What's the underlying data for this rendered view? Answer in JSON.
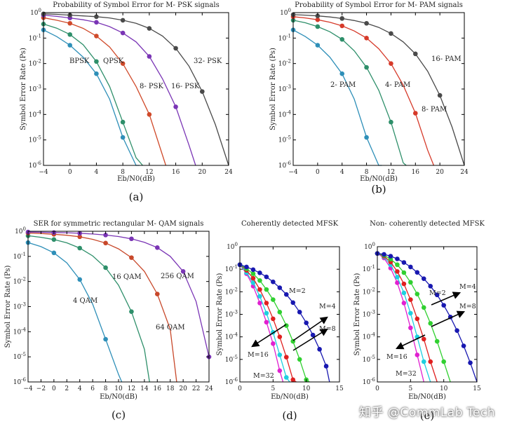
{
  "watermark": "知乎 @CommLab Tech",
  "chart_data": [
    {
      "id": "a",
      "type": "line",
      "panel_label": "(a)",
      "title": "Probability of Symbol Error for M- PSK signals",
      "xlabel": "Eb/N0(dB)",
      "ylabel": "Symbol Error Rate (Ps)",
      "xlim": [
        -4,
        24
      ],
      "ylim_exp": [
        -6,
        0
      ],
      "yscale": "log",
      "xticks": [
        -4,
        0,
        4,
        8,
        12,
        16,
        20,
        24
      ],
      "yticks": [
        "10^0",
        "10^-1",
        "10^-2",
        "10^-3",
        "10^-4",
        "10^-5",
        "10^-6"
      ],
      "series": [
        {
          "name": "BPSK",
          "color": "#2e8fb8",
          "label": "BPSK",
          "x": [
            -4,
            -2,
            0,
            2,
            4,
            6,
            8,
            10,
            10.5
          ],
          "logy": [
            -0.68,
            -0.94,
            -1.28,
            -1.75,
            -2.4,
            -3.4,
            -4.9,
            -6,
            -6
          ]
        },
        {
          "name": "QPSK",
          "color": "#2e8f6a",
          "label": "QPSK",
          "x": [
            -4,
            -2,
            0,
            2,
            4,
            6,
            8,
            10,
            11
          ],
          "logy": [
            -0.45,
            -0.61,
            -0.86,
            -1.26,
            -1.92,
            -2.9,
            -4.3,
            -5.7,
            -6
          ]
        },
        {
          "name": "8-PSK",
          "color": "#d04a2a",
          "label": "8- PSK",
          "x": [
            -4,
            -2,
            0,
            2,
            4,
            6,
            8,
            10,
            12,
            14,
            14.5
          ],
          "logy": [
            -0.2,
            -0.3,
            -0.42,
            -0.62,
            -0.92,
            -1.35,
            -2.0,
            -2.9,
            -4.0,
            -5.6,
            -6
          ]
        },
        {
          "name": "16-PSK",
          "color": "#7a35b5",
          "label": "16- PSK",
          "x": [
            -4,
            -2,
            0,
            2,
            4,
            6,
            8,
            10,
            12,
            14,
            16,
            18,
            19
          ],
          "logy": [
            -0.1,
            -0.15,
            -0.21,
            -0.28,
            -0.38,
            -0.55,
            -0.8,
            -1.15,
            -1.72,
            -2.6,
            -3.7,
            -5.2,
            -6
          ]
        },
        {
          "name": "32-PSK",
          "color": "#4a4a4a",
          "label": "32- PSK",
          "x": [
            -4,
            -2,
            0,
            2,
            4,
            6,
            8,
            10,
            12,
            14,
            16,
            18,
            20,
            22,
            24
          ],
          "logy": [
            -0.05,
            -0.07,
            -0.1,
            -0.13,
            -0.16,
            -0.21,
            -0.3,
            -0.42,
            -0.62,
            -0.92,
            -1.4,
            -2.1,
            -3.1,
            -4.4,
            -6
          ]
        }
      ]
    },
    {
      "id": "b",
      "type": "line",
      "panel_label": "(b)",
      "title": "Probability of Symbol Error for M- PAM signals",
      "xlabel": "Eb/N0(dB)",
      "ylabel": "Symbol Error Rate (Ps)",
      "xlim": [
        -4,
        24
      ],
      "ylim_exp": [
        -6,
        0
      ],
      "yscale": "log",
      "xticks": [
        -4,
        0,
        4,
        8,
        12,
        16,
        20,
        24
      ],
      "yticks": [
        "10^0",
        "10^-1",
        "10^-2",
        "10^-3",
        "10^-4",
        "10^-5",
        "10^-6"
      ],
      "series": [
        {
          "name": "2-PAM",
          "color": "#2e8fb8",
          "label": "2- PAM",
          "x": [
            -4,
            -2,
            0,
            2,
            4,
            6,
            8,
            10,
            10.5
          ],
          "logy": [
            -0.68,
            -0.94,
            -1.28,
            -1.75,
            -2.4,
            -3.4,
            -4.9,
            -6,
            -6
          ]
        },
        {
          "name": "4-PAM",
          "color": "#2e8f6a",
          "label": "4- PAM",
          "x": [
            -4,
            -2,
            0,
            2,
            4,
            6,
            8,
            10,
            12,
            14,
            14.5
          ],
          "logy": [
            -0.3,
            -0.4,
            -0.55,
            -0.75,
            -1.05,
            -1.5,
            -2.15,
            -3.05,
            -4.3,
            -5.9,
            -6
          ]
        },
        {
          "name": "8-PAM",
          "color": "#d63a2a",
          "label": "8- PAM",
          "x": [
            -4,
            -2,
            0,
            2,
            4,
            6,
            8,
            10,
            12,
            14,
            16,
            18,
            19
          ],
          "logy": [
            -0.16,
            -0.21,
            -0.28,
            -0.38,
            -0.52,
            -0.72,
            -1.0,
            -1.42,
            -2.0,
            -2.85,
            -3.95,
            -5.4,
            -6
          ]
        },
        {
          "name": "16-PAM",
          "color": "#4a4a4a",
          "label": "16- PAM",
          "x": [
            -4,
            -2,
            0,
            2,
            4,
            6,
            8,
            10,
            12,
            14,
            16,
            18,
            20,
            22,
            24
          ],
          "logy": [
            -0.08,
            -0.1,
            -0.13,
            -0.17,
            -0.23,
            -0.31,
            -0.42,
            -0.58,
            -0.82,
            -1.15,
            -1.62,
            -2.3,
            -3.25,
            -4.5,
            -6
          ]
        }
      ]
    },
    {
      "id": "c",
      "type": "line",
      "panel_label": "(c)",
      "title": "SER for symmetric rectangular M- QAM signals",
      "xlabel": "Eb/N0(dB)",
      "ylabel": "Symbol Error Rate (Ps)",
      "xlim": [
        -4,
        24
      ],
      "ylim_exp": [
        -6,
        0
      ],
      "yscale": "log",
      "xticks": [
        -4,
        -2,
        0,
        2,
        4,
        6,
        8,
        10,
        12,
        14,
        16,
        18,
        20,
        22,
        24
      ],
      "yticks": [
        "10^0",
        "10^-1",
        "10^-2",
        "10^-3",
        "10^-4",
        "10^-5",
        "10^-6"
      ],
      "series": [
        {
          "name": "4 QAM",
          "color": "#2e8fb8",
          "label": "4 QAM",
          "x": [
            -4,
            -2,
            0,
            2,
            4,
            6,
            8,
            10,
            10.5
          ],
          "logy": [
            -0.45,
            -0.61,
            -0.86,
            -1.26,
            -1.92,
            -2.9,
            -4.3,
            -5.7,
            -6
          ]
        },
        {
          "name": "16 QAM",
          "color": "#2e8f6a",
          "label": "16 QAM",
          "x": [
            -4,
            -2,
            0,
            2,
            4,
            6,
            8,
            10,
            12,
            14,
            14.8
          ],
          "logy": [
            -0.18,
            -0.24,
            -0.33,
            -0.46,
            -0.67,
            -0.98,
            -1.45,
            -2.15,
            -3.2,
            -4.7,
            -6
          ]
        },
        {
          "name": "64 QAM",
          "color": "#c8482a",
          "label": "64 QAM",
          "x": [
            -4,
            -2,
            0,
            2,
            4,
            6,
            8,
            10,
            12,
            14,
            16,
            18,
            19
          ],
          "logy": [
            -0.07,
            -0.09,
            -0.12,
            -0.16,
            -0.22,
            -0.32,
            -0.47,
            -0.7,
            -1.05,
            -1.6,
            -2.5,
            -3.9,
            -6
          ]
        },
        {
          "name": "256 QAM",
          "color": "#7a35b5",
          "label": "256 QAM",
          "x": [
            -4,
            -2,
            0,
            2,
            4,
            6,
            8,
            10,
            12,
            14,
            16,
            18,
            20,
            22,
            24
          ],
          "logy": [
            -0.03,
            -0.04,
            -0.05,
            -0.06,
            -0.08,
            -0.11,
            -0.15,
            -0.21,
            -0.3,
            -0.44,
            -0.65,
            -1.0,
            -1.6,
            -2.8,
            -5.0
          ]
        }
      ]
    },
    {
      "id": "d",
      "type": "line",
      "panel_label": "(d)",
      "title": "Coherently detected MFSK",
      "xlabel": "Eb/N0(dB)",
      "ylabel": "Symbol Error Rate (Ps)",
      "xlim": [
        0,
        15
      ],
      "ylim_exp": [
        -6,
        0
      ],
      "yscale": "log",
      "xticks": [
        0,
        5,
        10,
        15
      ],
      "yticks": [
        "10^0",
        "10^-1",
        "10^-2",
        "10^-3",
        "10^-4",
        "10^-5",
        "10^-6"
      ],
      "annotations": [
        "M=2",
        "M=4",
        "M=8",
        "M=16",
        "M=32"
      ],
      "series": [
        {
          "name": "M=32",
          "color": "#e020d0",
          "x": [
            0,
            1,
            2,
            3,
            4,
            5,
            6,
            6.5
          ],
          "logy": [
            -0.8,
            -1.2,
            -1.75,
            -2.5,
            -3.35,
            -4.3,
            -5.5,
            -6
          ]
        },
        {
          "name": "M=16",
          "color": "#1ed0e0",
          "x": [
            0,
            1,
            2,
            3,
            4,
            5,
            6,
            7,
            7.5
          ],
          "logy": [
            -0.8,
            -1.15,
            -1.6,
            -2.2,
            -2.95,
            -3.8,
            -4.8,
            -5.8,
            -6
          ]
        },
        {
          "name": "M=8",
          "color": "#e02020",
          "x": [
            0,
            1,
            2,
            3,
            4,
            5,
            6,
            7,
            8,
            8.5
          ],
          "logy": [
            -0.8,
            -1.05,
            -1.4,
            -1.9,
            -2.5,
            -3.2,
            -4.0,
            -4.9,
            -5.9,
            -6
          ]
        },
        {
          "name": "M=4",
          "color": "#30d030",
          "x": [
            0,
            1,
            2,
            3,
            4,
            5,
            6,
            7,
            8,
            9,
            10,
            10.5
          ],
          "logy": [
            -0.8,
            -0.98,
            -1.2,
            -1.5,
            -1.9,
            -2.35,
            -2.9,
            -3.5,
            -4.2,
            -5.0,
            -5.9,
            -6
          ]
        },
        {
          "name": "M=2",
          "color": "#1818b0",
          "x": [
            0,
            1,
            2,
            3,
            4,
            5,
            6,
            7,
            8,
            9,
            10,
            11,
            12,
            13,
            13.5
          ],
          "logy": [
            -0.8,
            -0.9,
            -1.02,
            -1.16,
            -1.34,
            -1.56,
            -1.82,
            -2.12,
            -2.48,
            -2.9,
            -3.38,
            -3.92,
            -4.55,
            -5.3,
            -6
          ]
        }
      ]
    },
    {
      "id": "e",
      "type": "line",
      "panel_label": "(e)",
      "title": "Non- coherently detected MFSK",
      "xlabel": "Eb/N0(dB)",
      "ylabel": "Symbol Error Rate (Ps)",
      "xlim": [
        0,
        15
      ],
      "ylim_exp": [
        -6,
        0
      ],
      "yscale": "log",
      "xticks": [
        0,
        5,
        10,
        15
      ],
      "yticks": [
        "10^0",
        "10^-1",
        "10^-2",
        "10^-3",
        "10^-4",
        "10^-5",
        "10^-6"
      ],
      "annotations": [
        "M=2",
        "M=4",
        "M=8",
        "M=16",
        "M=32"
      ],
      "series": [
        {
          "name": "M=32",
          "color": "#e020d0",
          "x": [
            0,
            1,
            2,
            3,
            4,
            5,
            6,
            7
          ],
          "logy": [
            -0.3,
            -0.5,
            -0.95,
            -1.6,
            -2.5,
            -3.6,
            -4.8,
            -6
          ]
        },
        {
          "name": "M=16",
          "color": "#1ed0e0",
          "x": [
            0,
            1,
            2,
            3,
            4,
            5,
            6,
            7,
            8
          ],
          "logy": [
            -0.3,
            -0.45,
            -0.8,
            -1.35,
            -2.05,
            -2.95,
            -4.0,
            -5.1,
            -6
          ]
        },
        {
          "name": "M=8",
          "color": "#e02020",
          "x": [
            0,
            1,
            2,
            3,
            4,
            5,
            6,
            7,
            8,
            9
          ],
          "logy": [
            -0.3,
            -0.42,
            -0.68,
            -1.1,
            -1.65,
            -2.35,
            -3.2,
            -4.1,
            -5.1,
            -6
          ]
        },
        {
          "name": "M=4",
          "color": "#30d030",
          "x": [
            0,
            1,
            2,
            3,
            4,
            5,
            6,
            7,
            8,
            9,
            10,
            11
          ],
          "logy": [
            -0.3,
            -0.38,
            -0.55,
            -0.8,
            -1.15,
            -1.58,
            -2.1,
            -2.7,
            -3.4,
            -4.2,
            -5.1,
            -6
          ]
        },
        {
          "name": "M=2",
          "color": "#1818b0",
          "x": [
            0,
            1,
            2,
            3,
            4,
            5,
            6,
            7,
            8,
            9,
            10,
            11,
            12,
            13,
            14,
            15
          ],
          "logy": [
            -0.3,
            -0.34,
            -0.42,
            -0.54,
            -0.7,
            -0.9,
            -1.14,
            -1.42,
            -1.75,
            -2.14,
            -2.6,
            -3.12,
            -3.72,
            -4.4,
            -5.15,
            -6
          ]
        }
      ]
    }
  ]
}
